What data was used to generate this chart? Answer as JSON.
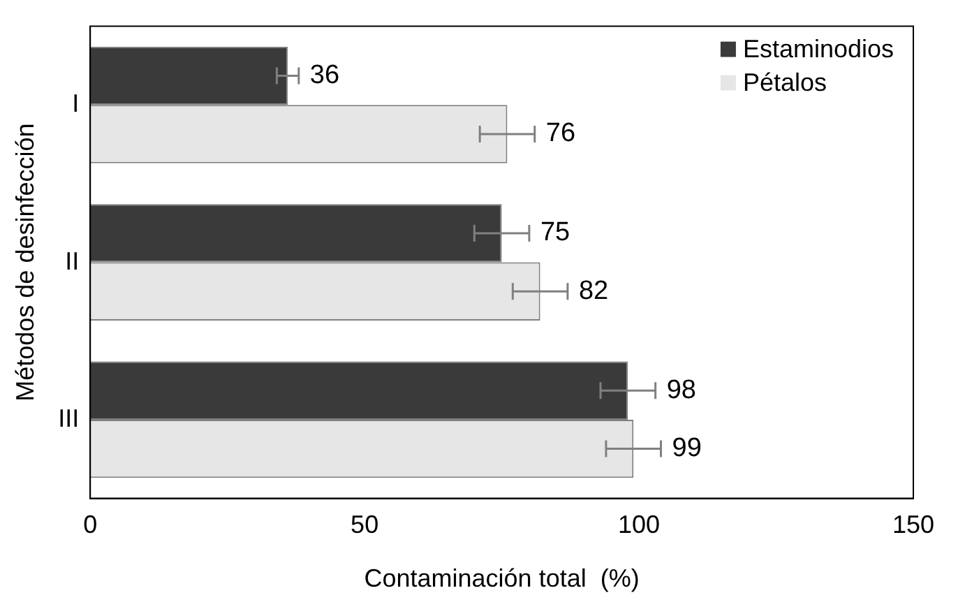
{
  "chart_data": {
    "type": "bar",
    "orientation": "horizontal",
    "xlabel": "Contaminación total  (%)",
    "ylabel": "Métodos de desinfección",
    "categories": [
      "I",
      "II",
      "III"
    ],
    "series": [
      {
        "name": "Estaminodios",
        "color": "#3a3a3a",
        "values": [
          36,
          75,
          98
        ],
        "errors": [
          2,
          5,
          5
        ]
      },
      {
        "name": "Pétalos",
        "color": "#e6e6e6",
        "values": [
          76,
          82,
          99
        ],
        "errors": [
          5,
          5,
          5
        ]
      }
    ],
    "xlim": [
      0,
      150
    ],
    "xticks": [
      0,
      50,
      100,
      150
    ],
    "grid": false,
    "legend": "top right",
    "data_labels": true
  }
}
